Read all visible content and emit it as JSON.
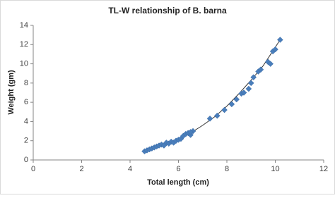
{
  "chart_data": {
    "type": "scatter",
    "title": "TL-W relationship of B. barna",
    "x_label": "Total length (cm)",
    "y_label": "Weight (gm)",
    "series": [
      {
        "color": "#4a7ebb",
        "x": [
          4.6,
          4.7,
          4.8,
          4.9,
          5.0,
          5.1,
          5.2,
          5.3,
          5.4,
          5.5,
          5.6,
          5.7,
          5.8,
          5.9,
          6.0,
          6.1,
          6.2,
          6.3,
          6.4,
          6.5,
          6.6,
          6.5,
          7.3,
          7.6,
          7.9,
          8.2,
          8.4,
          8.6,
          8.7,
          8.9,
          9.0,
          9.1,
          9.3,
          9.4,
          9.7,
          9.8,
          9.9,
          10.0,
          10.2
        ],
        "values": [
          0.9,
          1.0,
          1.1,
          1.2,
          1.3,
          1.4,
          1.5,
          1.6,
          1.5,
          1.8,
          1.7,
          1.9,
          1.8,
          2.0,
          2.1,
          2.2,
          2.5,
          2.7,
          2.8,
          2.6,
          3.0,
          2.9,
          4.3,
          4.6,
          5.2,
          5.8,
          6.3,
          6.9,
          7.0,
          7.4,
          8.0,
          8.6,
          9.2,
          9.4,
          10.2,
          10.0,
          11.3,
          11.5,
          12.5
        ]
      }
    ],
    "trendline": {
      "color": "#333333",
      "x": [
        4.6,
        5.0,
        5.5,
        6.0,
        6.5,
        7.0,
        7.5,
        8.0,
        8.5,
        9.0,
        9.5,
        10.2
      ],
      "values": [
        0.9,
        1.18,
        1.63,
        2.17,
        2.8,
        3.6,
        4.5,
        5.6,
        6.9,
        8.3,
        9.8,
        12.5
      ]
    },
    "xlim": [
      0,
      12
    ],
    "xticks": [
      0,
      2,
      4,
      6,
      8,
      10,
      12
    ],
    "ylim": [
      0,
      14
    ],
    "yticks": [
      0,
      2,
      4,
      6,
      8,
      10,
      12,
      14
    ],
    "grid": false
  }
}
